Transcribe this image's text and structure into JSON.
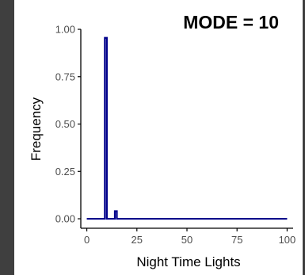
{
  "annotation": "MODE = 10",
  "colors": {
    "line": "#00008b",
    "axis": "#000000",
    "tick_text": "#4d4d4d",
    "side_bars": "#3f3f3f"
  },
  "chart_data": {
    "type": "line",
    "title": "",
    "xlabel": "Night Time Lights",
    "ylabel": "Frequency",
    "xlim": [
      -3,
      103
    ],
    "ylim": [
      -0.05,
      1.0
    ],
    "xticks": [
      0,
      25,
      50,
      75,
      100
    ],
    "yticks": [
      0.0,
      0.25,
      0.5,
      0.75,
      1.0
    ],
    "xtick_labels": [
      "0",
      "25",
      "50",
      "75",
      "100"
    ],
    "ytick_labels": [
      "0.00",
      "0.25",
      "0.50",
      "0.75",
      "1.00"
    ],
    "grid": false,
    "series": [
      {
        "x": [
          0,
          9,
          9,
          10,
          10,
          14,
          14,
          15,
          15,
          100
        ],
        "y": [
          0,
          0,
          0.955,
          0.955,
          0,
          0,
          0.04,
          0.04,
          0,
          0
        ]
      }
    ]
  }
}
